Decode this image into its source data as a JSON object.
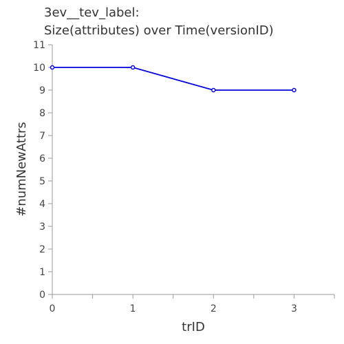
{
  "chart_data": {
    "type": "line",
    "title_lines": [
      "3ev__tev_label:",
      "Size(attributes) over Time(versionID)"
    ],
    "xlabel": "trID",
    "ylabel": "#numNewAttrs",
    "x": [
      0,
      1,
      2,
      3
    ],
    "series": [
      {
        "values": [
          10,
          10,
          9,
          9
        ]
      }
    ],
    "xlim": [
      0,
      3.5
    ],
    "ylim": [
      0,
      11
    ],
    "x_ticks": [
      0,
      1,
      2,
      3
    ],
    "x_minor_ticks": [
      0.5,
      1.5,
      2.5,
      3.5
    ],
    "y_ticks": [
      0,
      1,
      2,
      3,
      4,
      5,
      6,
      7,
      8,
      9,
      10,
      11
    ],
    "grid": false,
    "legend": "none",
    "line_color": "#0000dd"
  }
}
